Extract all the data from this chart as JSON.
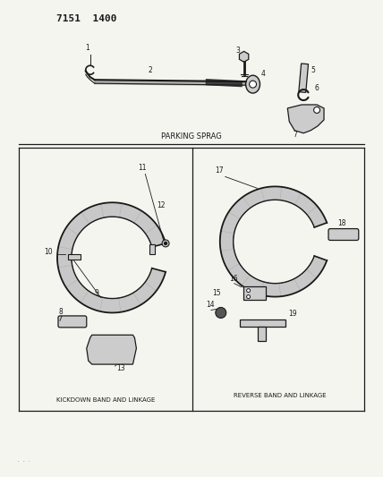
{
  "title": "7151  1400",
  "bg_color": "#f5f5f0",
  "parking_sprag_label": "PARKING SPRAG",
  "kickdown_label": "KICKDOWN BAND AND LINKAGE",
  "reverse_label": "REVERSE BAND AND LINKAGE",
  "fig_width": 4.28,
  "fig_height": 5.33,
  "dpi": 100,
  "lc": "#1a1a1a",
  "tc": "#1a1a1a"
}
